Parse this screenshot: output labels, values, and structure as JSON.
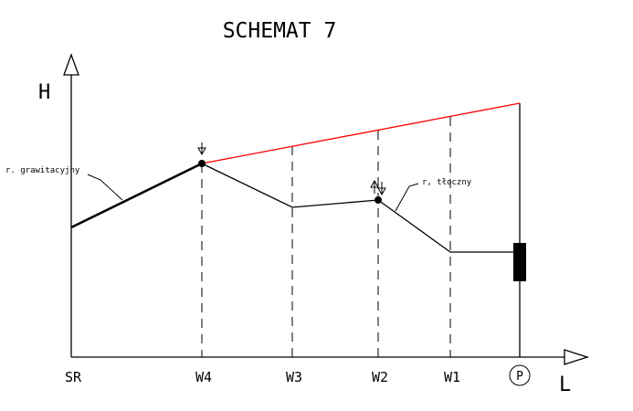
{
  "title": "SCHEMAT 7",
  "axes": {
    "y_label": "H",
    "x_label": "L"
  },
  "x_labels": {
    "sr": "SR",
    "w4": "W4",
    "w3": "W3",
    "w2": "W2",
    "w1": "W1",
    "p": "P"
  },
  "annotations": {
    "gravity": "r. grawitacyjny",
    "pressure": "r, tłoczny"
  },
  "colors": {
    "line": "#000000",
    "red_line": "#ff0000"
  }
}
